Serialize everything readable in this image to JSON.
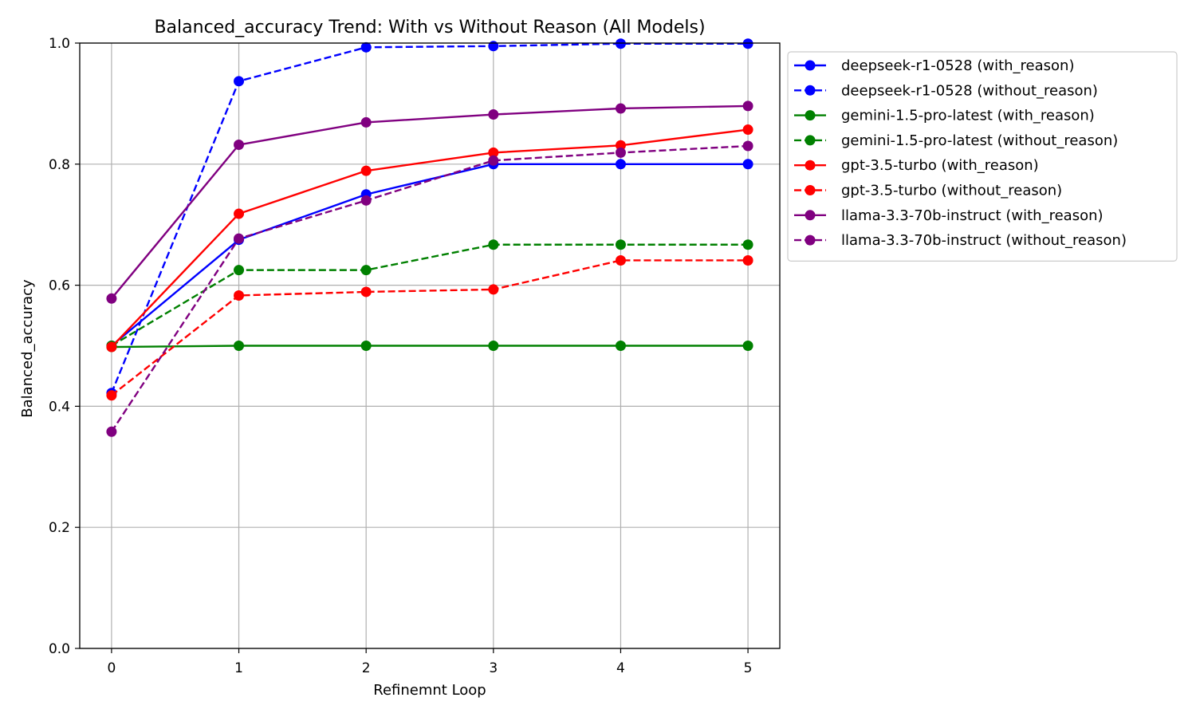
{
  "chart_data": {
    "type": "line",
    "title": "Balanced_accuracy Trend: With vs Without Reason (All Models)",
    "xlabel": "Refinemnt Loop",
    "ylabel": "Balanced_accuracy",
    "x": [
      0,
      1,
      2,
      3,
      4,
      5
    ],
    "x_ticks": [
      "0",
      "1",
      "2",
      "3",
      "4",
      "5"
    ],
    "y_ticks": [
      "0.0",
      "0.2",
      "0.4",
      "0.6",
      "0.8",
      "1.0"
    ],
    "xlim": [
      -0.25,
      5.25
    ],
    "ylim": [
      0.0,
      1.0
    ],
    "grid": true,
    "legend_position": "outside-right-top",
    "series": [
      {
        "name": "deepseek-r1-0528 (with_reason)",
        "color": "#0000ff",
        "style": "solid",
        "values": [
          0.5,
          0.675,
          0.75,
          0.8,
          0.8,
          0.8
        ]
      },
      {
        "name": "deepseek-r1-0528 (without_reason)",
        "color": "#0000ff",
        "style": "dashed",
        "values": [
          0.422,
          0.937,
          0.993,
          0.995,
          0.999,
          0.999
        ]
      },
      {
        "name": "gemini-1.5-pro-latest (with_reason)",
        "color": "#008000",
        "style": "solid",
        "values": [
          0.498,
          0.5,
          0.5,
          0.5,
          0.5,
          0.5
        ]
      },
      {
        "name": "gemini-1.5-pro-latest (without_reason)",
        "color": "#008000",
        "style": "dashed",
        "values": [
          0.5,
          0.625,
          0.625,
          0.667,
          0.667,
          0.667
        ]
      },
      {
        "name": "gpt-3.5-turbo (with_reason)",
        "color": "#ff0000",
        "style": "solid",
        "values": [
          0.498,
          0.718,
          0.789,
          0.819,
          0.831,
          0.857
        ]
      },
      {
        "name": "gpt-3.5-turbo (without_reason)",
        "color": "#ff0000",
        "style": "dashed",
        "values": [
          0.418,
          0.583,
          0.589,
          0.593,
          0.641,
          0.641
        ]
      },
      {
        "name": "llama-3.3-70b-instruct (with_reason)",
        "color": "#800080",
        "style": "solid",
        "values": [
          0.578,
          0.832,
          0.869,
          0.882,
          0.892,
          0.896
        ]
      },
      {
        "name": "llama-3.3-70b-instruct (without_reason)",
        "color": "#800080",
        "style": "dashed",
        "values": [
          0.358,
          0.677,
          0.74,
          0.806,
          0.819,
          0.83
        ]
      }
    ]
  }
}
